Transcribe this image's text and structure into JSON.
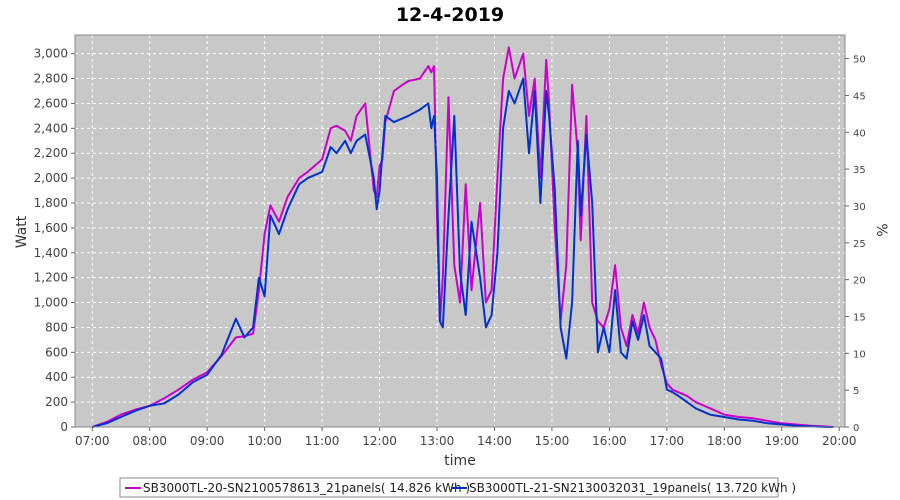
{
  "chart_data": {
    "type": "line",
    "title": "12-4-2019",
    "xlabel": "time",
    "ylabel": "Watt",
    "y2label": "%",
    "xlim": [
      6.7,
      20.1
    ],
    "ylim": [
      0,
      3150
    ],
    "y2lim": [
      0,
      53.2
    ],
    "x_ticks": [
      "07:00",
      "08:00",
      "09:00",
      "10:00",
      "11:00",
      "12:00",
      "13:00",
      "14:00",
      "15:00",
      "16:00",
      "17:00",
      "18:00",
      "19:00",
      "20:00"
    ],
    "y_ticks": [
      "0",
      "200",
      "400",
      "600",
      "800",
      "1,000",
      "1,200",
      "1,400",
      "1,600",
      "1,800",
      "2,000",
      "2,200",
      "2,400",
      "2,600",
      "2,800",
      "3,000"
    ],
    "y2_ticks": [
      "0",
      "5",
      "10",
      "15",
      "20",
      "25",
      "30",
      "35",
      "40",
      "45",
      "50"
    ],
    "grid": true,
    "legend_position": "bottom",
    "colors": {
      "plot_bg": "#c8c8c8",
      "grid": "#ffffff",
      "series1": "#cc00cc",
      "series2": "#0033cc"
    },
    "series": [
      {
        "name": "SB3000TL-20-SN2100578613_21panels( 14.826 kWh )",
        "x": [
          7.0,
          7.25,
          7.5,
          7.75,
          8.0,
          8.25,
          8.5,
          8.75,
          9.0,
          9.25,
          9.5,
          9.65,
          9.8,
          9.9,
          10.0,
          10.1,
          10.25,
          10.4,
          10.6,
          10.75,
          11.0,
          11.15,
          11.25,
          11.4,
          11.5,
          11.6,
          11.75,
          11.9,
          11.95,
          12.0,
          12.05,
          12.1,
          12.25,
          12.4,
          12.5,
          12.7,
          12.85,
          12.9,
          12.95,
          13.0,
          13.05,
          13.1,
          13.2,
          13.3,
          13.4,
          13.5,
          13.6,
          13.75,
          13.85,
          13.95,
          14.05,
          14.15,
          14.25,
          14.35,
          14.5,
          14.6,
          14.7,
          14.8,
          14.9,
          14.95,
          15.05,
          15.15,
          15.25,
          15.35,
          15.45,
          15.5,
          15.6,
          15.7,
          15.8,
          15.9,
          16.0,
          16.1,
          16.2,
          16.3,
          16.4,
          16.5,
          16.6,
          16.7,
          16.8,
          16.9,
          17.0,
          17.1,
          17.2,
          17.35,
          17.5,
          17.75,
          18.0,
          18.25,
          18.5,
          18.75,
          19.0,
          19.25,
          19.5,
          19.75,
          19.9
        ],
        "y": [
          0,
          40,
          100,
          140,
          170,
          230,
          300,
          380,
          440,
          570,
          720,
          730,
          750,
          1100,
          1550,
          1780,
          1650,
          1850,
          2000,
          2050,
          2150,
          2400,
          2420,
          2380,
          2300,
          2500,
          2600,
          1900,
          1850,
          2100,
          2150,
          2450,
          2700,
          2750,
          2780,
          2800,
          2900,
          2850,
          2900,
          1700,
          850,
          1200,
          2650,
          1300,
          1000,
          1950,
          1100,
          1800,
          1000,
          1100,
          2000,
          2800,
          3050,
          2800,
          3000,
          2500,
          2800,
          2000,
          2950,
          2600,
          1600,
          850,
          1300,
          2750,
          2200,
          1500,
          2500,
          1000,
          850,
          800,
          950,
          1300,
          800,
          650,
          900,
          750,
          1000,
          800,
          700,
          500,
          350,
          300,
          280,
          250,
          200,
          150,
          100,
          80,
          70,
          50,
          30,
          20,
          10,
          5,
          0
        ]
      },
      {
        "name": "SB3000TL-21-SN2130032031_19panels( 13.720 kWh )",
        "x": [
          7.0,
          7.25,
          7.5,
          7.75,
          8.0,
          8.25,
          8.5,
          8.75,
          9.0,
          9.25,
          9.5,
          9.65,
          9.8,
          9.9,
          10.0,
          10.1,
          10.25,
          10.4,
          10.6,
          10.75,
          11.0,
          11.15,
          11.25,
          11.4,
          11.5,
          11.6,
          11.75,
          11.9,
          11.95,
          12.0,
          12.05,
          12.1,
          12.25,
          12.4,
          12.5,
          12.7,
          12.85,
          12.9,
          12.95,
          13.0,
          13.05,
          13.1,
          13.2,
          13.3,
          13.4,
          13.5,
          13.6,
          13.75,
          13.85,
          13.95,
          14.05,
          14.15,
          14.25,
          14.35,
          14.5,
          14.6,
          14.7,
          14.8,
          14.9,
          14.95,
          15.05,
          15.15,
          15.25,
          15.35,
          15.45,
          15.5,
          15.6,
          15.7,
          15.8,
          15.9,
          16.0,
          16.1,
          16.2,
          16.3,
          16.4,
          16.5,
          16.6,
          16.7,
          16.8,
          16.9,
          17.0,
          17.1,
          17.2,
          17.35,
          17.5,
          17.75,
          18.0,
          18.25,
          18.5,
          18.75,
          19.0,
          19.25,
          19.5,
          19.75,
          19.9
        ],
        "y": [
          0,
          30,
          80,
          130,
          170,
          190,
          260,
          360,
          420,
          580,
          870,
          720,
          800,
          1200,
          1050,
          1700,
          1550,
          1750,
          1950,
          2000,
          2050,
          2250,
          2200,
          2300,
          2200,
          2300,
          2350,
          2000,
          1750,
          1900,
          2200,
          2500,
          2450,
          2480,
          2500,
          2550,
          2600,
          2400,
          2500,
          2000,
          850,
          800,
          1700,
          2500,
          1250,
          900,
          1650,
          1200,
          800,
          900,
          1400,
          2400,
          2700,
          2600,
          2800,
          2200,
          2700,
          1800,
          2700,
          2500,
          1900,
          800,
          550,
          1000,
          2300,
          1700,
          2350,
          1800,
          600,
          800,
          600,
          1100,
          600,
          550,
          850,
          700,
          900,
          650,
          600,
          550,
          300,
          280,
          250,
          200,
          150,
          100,
          80,
          60,
          50,
          30,
          20,
          10,
          5,
          0,
          0
        ]
      }
    ]
  }
}
